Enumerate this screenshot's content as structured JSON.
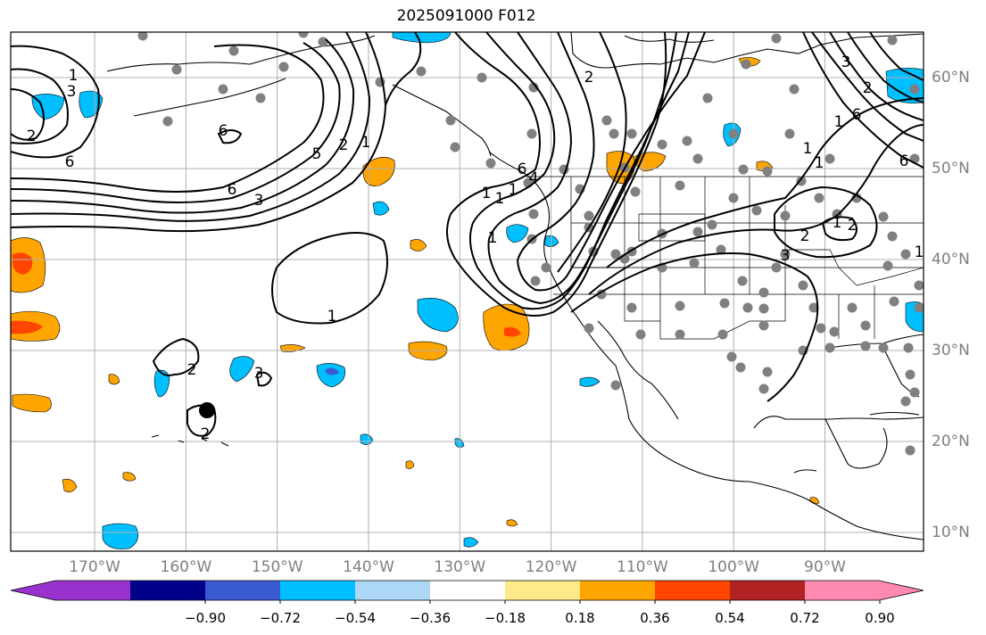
{
  "title": "2025091000 F012",
  "lon_labels": [
    "170°W",
    "160°W",
    "150°W",
    "140°W",
    "130°W",
    "120°W",
    "110°W",
    "100°W",
    "90°W"
  ],
  "lat_labels": [
    "60°N",
    "50°N",
    "40°N",
    "30°N",
    "20°N",
    "10°N"
  ],
  "colorbar": {
    "ticks": [
      "−0.90",
      "−0.72",
      "−0.54",
      "−0.36",
      "−0.18",
      "0.18",
      "0.36",
      "0.54",
      "0.72",
      "0.90"
    ],
    "colors": [
      "#9932cc",
      "#00008b",
      "#3a5bd0",
      "#00bfff",
      "#add8f5",
      "#ffffff",
      "#ffe98a",
      "#ffa500",
      "#ff4500",
      "#b22222",
      "#ff8ab0"
    ]
  },
  "contour_labels": [
    "6",
    "3",
    "2",
    "1",
    "5",
    "6",
    "3",
    "2",
    "1",
    "6",
    "1",
    "2",
    "3",
    "2",
    "1",
    "1",
    "1",
    "1",
    "6",
    "4",
    "2",
    "1",
    "2",
    "1",
    "6",
    "2",
    "3",
    "1",
    "1",
    "2",
    "3",
    "6",
    "1"
  ],
  "colors": {
    "grid": "#b0b0b0",
    "contour": "#000000",
    "station": "#808080",
    "land": "#000000"
  }
}
